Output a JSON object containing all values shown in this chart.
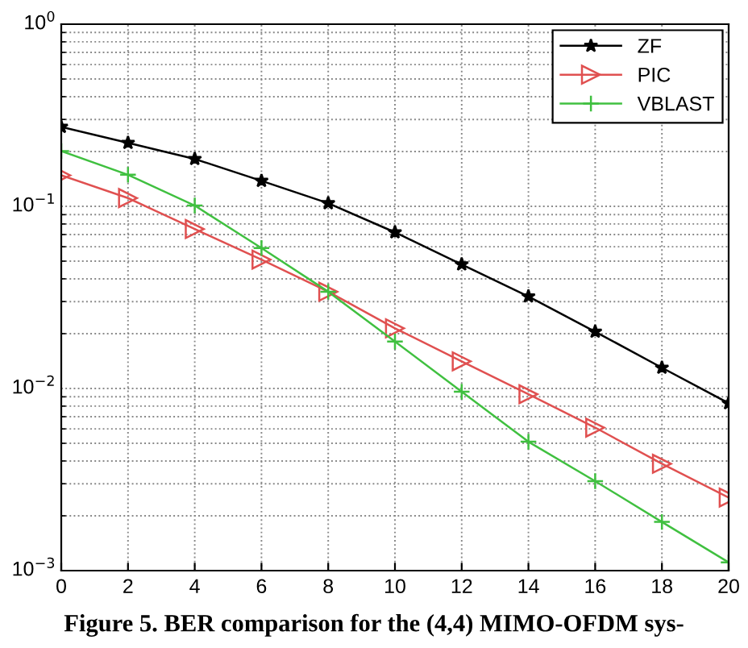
{
  "chart_data": {
    "type": "line",
    "x": [
      0,
      2,
      4,
      6,
      8,
      10,
      12,
      14,
      16,
      18,
      20
    ],
    "series": [
      {
        "name": "ZF",
        "color": "#000000",
        "marker": "star",
        "values": [
          0.273,
          0.223,
          0.182,
          0.138,
          0.104,
          0.072,
          0.048,
          0.032,
          0.0205,
          0.013,
          0.0083
        ]
      },
      {
        "name": "PIC",
        "color": "#e05050",
        "marker": "triangle",
        "values": [
          0.148,
          0.111,
          0.075,
          0.051,
          0.034,
          0.0214,
          0.0141,
          0.0093,
          0.0061,
          0.00386,
          0.00252
        ]
      },
      {
        "name": "VBLAST",
        "color": "#40c040",
        "marker": "cross",
        "values": [
          0.201,
          0.149,
          0.101,
          0.059,
          0.034,
          0.0181,
          0.0096,
          0.0051,
          0.0031,
          0.00185,
          0.00111
        ]
      }
    ],
    "log": "y",
    "xlim": [
      0,
      20
    ],
    "xticks": [
      0,
      2,
      4,
      6,
      8,
      10,
      12,
      14,
      16,
      18,
      20
    ],
    "ylim": [
      0.001,
      1
    ],
    "yticks": [
      {
        "value": 0.001,
        "label": "10$^{−3}$"
      },
      {
        "value": 0.01,
        "label": "10$^{−2}$"
      },
      {
        "value": 0.1,
        "label": "10$^{−1}$"
      },
      {
        "value": 1,
        "label": "10$^{0}$"
      }
    ],
    "grid": true,
    "legend": "top right",
    "line_style": "solid",
    "annotations": [
      "Figure 5. BER comparison for the (4,4) MIMO-OFDM sys-"
    ]
  }
}
